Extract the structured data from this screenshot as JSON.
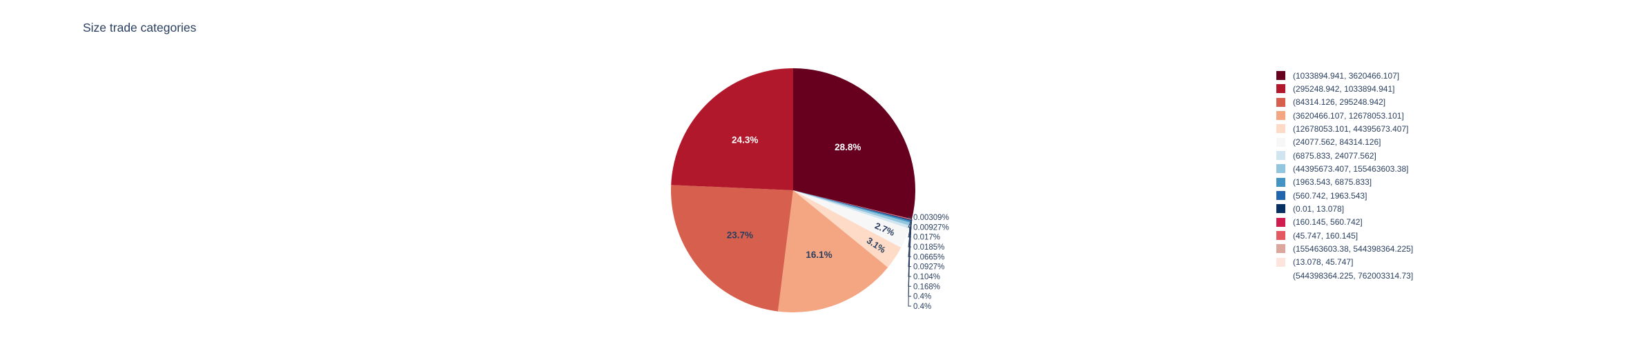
{
  "chart_data": {
    "type": "pie",
    "title": "Size trade categories",
    "text_color": "#2a3f5f",
    "background_color": "#ffffff",
    "legend_position": "right",
    "sort": "descending",
    "start_angle": "top",
    "first_slice_direction": "clockwise",
    "slices": [
      {
        "range": "(1033894.941, 3620466.107]",
        "percent": 28.8,
        "percent_label": "28.8%",
        "color": "#67001f",
        "label_color": "#ffffff"
      },
      {
        "range": "(295248.942, 1033894.941]",
        "percent": 24.3,
        "percent_label": "24.3%",
        "color": "#b2182b",
        "label_color": "#ffffff"
      },
      {
        "range": "(84314.126, 295248.942]",
        "percent": 23.7,
        "percent_label": "23.7%",
        "color": "#d6604d",
        "label_color": "#2a3f5f"
      },
      {
        "range": "(3620466.107, 12678053.101]",
        "percent": 16.1,
        "percent_label": "16.1%",
        "color": "#f4a582",
        "label_color": "#2a3f5f"
      },
      {
        "range": "(12678053.101, 44395673.407]",
        "percent": 3.1,
        "percent_label": "3.1%",
        "color": "#fddbc7",
        "label_color": "#2a3f5f"
      },
      {
        "range": "(24077.562, 84314.126]",
        "percent": 2.7,
        "percent_label": "2.7%",
        "color": "#f7f7f7",
        "label_color": "#2a3f5f"
      },
      {
        "range": "(6875.833, 24077.562]",
        "percent": 0.4,
        "percent_label": "0.4%",
        "color": "#d1e5f0",
        "label_color": "#2a3f5f"
      },
      {
        "range": "(44395673.407, 155463603.38]",
        "percent": 0.4,
        "percent_label": "0.4%",
        "color": "#92c5de",
        "label_color": "#2a3f5f"
      },
      {
        "range": "(1963.543, 6875.833]",
        "percent": 0.168,
        "percent_label": "0.168%",
        "color": "#4393c3",
        "label_color": "#2a3f5f"
      },
      {
        "range": "(560.742, 1963.543]",
        "percent": 0.104,
        "percent_label": "0.104%",
        "color": "#2166ac",
        "label_color": "#2a3f5f"
      },
      {
        "range": "(0.01, 13.078]",
        "percent": 0.0927,
        "percent_label": "0.0927%",
        "color": "#053061",
        "label_color": "#2a3f5f"
      },
      {
        "range": "(160.145, 560.742]",
        "percent": 0.0665,
        "percent_label": "0.0665%",
        "color": "#d01c4f",
        "label_color": "#2a3f5f"
      },
      {
        "range": "(45.747, 160.145]",
        "percent": 0.0185,
        "percent_label": "0.0185%",
        "color": "#e45862",
        "label_color": "#2a3f5f"
      },
      {
        "range": "(155463603.38, 544398364.225]",
        "percent": 0.017,
        "percent_label": "0.017%",
        "color": "#dba69d",
        "label_color": "#2a3f5f"
      },
      {
        "range": "(13.078, 45.747]",
        "percent": 0.00927,
        "percent_label": "0.00927%",
        "color": "#fde4dc",
        "label_color": "#2a3f5f"
      },
      {
        "range": "(544398364.225, 762003314.73]",
        "percent": 0.00309,
        "percent_label": "0.00309%",
        "color": "#ffffff",
        "label_color": "#2a3f5f"
      }
    ]
  }
}
